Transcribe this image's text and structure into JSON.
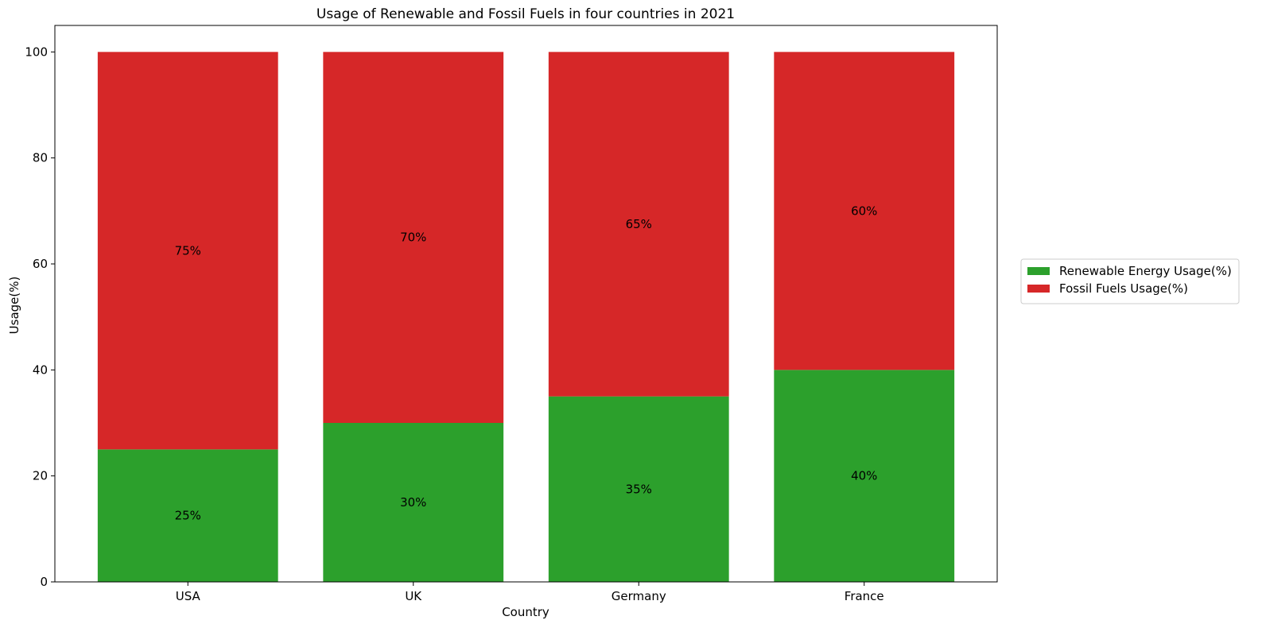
{
  "chart_data": {
    "type": "bar",
    "stacked": true,
    "title": "Usage of Renewable and Fossil Fuels in four countries in 2021",
    "xlabel": "Country",
    "ylabel": "Usage(%)",
    "categories": [
      "USA",
      "UK",
      "Germany",
      "France"
    ],
    "series": [
      {
        "name": "Renewable Energy Usage(%)",
        "values": [
          25,
          30,
          35,
          40
        ],
        "labels": [
          "25%",
          "30%",
          "35%",
          "40%"
        ],
        "color": "#2ca02c"
      },
      {
        "name": "Fossil Fuels Usage(%)",
        "values": [
          75,
          70,
          65,
          60
        ],
        "labels": [
          "75%",
          "70%",
          "65%",
          "60%"
        ],
        "color": "#d62728"
      }
    ],
    "ylim": [
      0,
      105
    ],
    "yticks": [
      0,
      20,
      40,
      60,
      80,
      100
    ],
    "ytick_labels": [
      "0",
      "20",
      "40",
      "60",
      "80",
      "100"
    ],
    "grid": false,
    "legend_position": "right"
  }
}
